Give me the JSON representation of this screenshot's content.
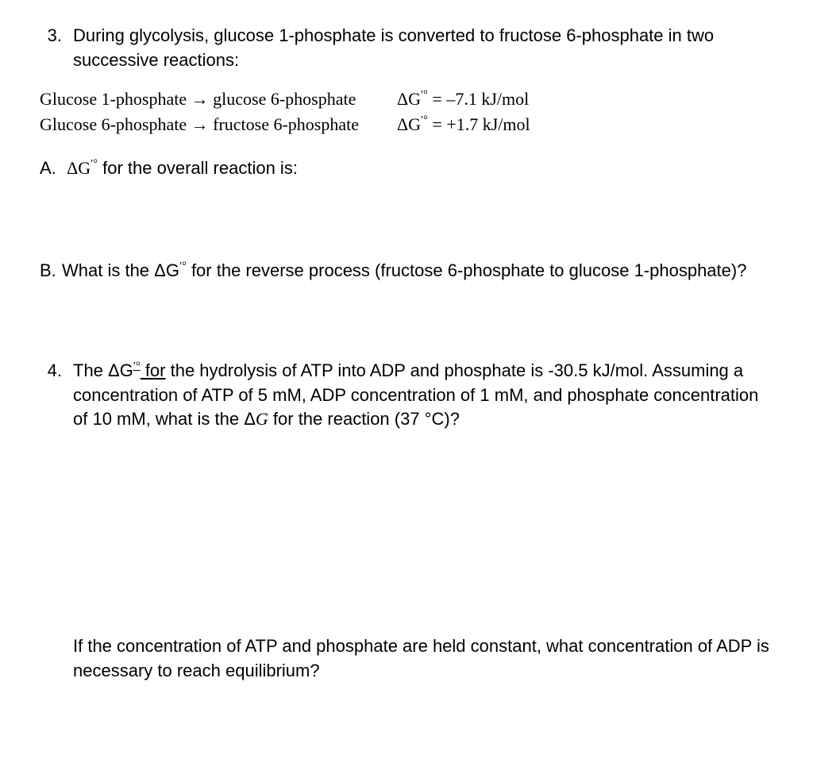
{
  "q3": {
    "number": "3.",
    "intro": "During glycolysis, glucose 1-phosphate is converted to fructose 6-phosphate in two successive reactions:",
    "reactions": [
      {
        "lhs": "Glucose 1-phosphate",
        "arrow": "→",
        "rhs": "glucose 6-phosphate",
        "dg_prefix": "ΔG",
        "dg_sup": "ʹ°",
        "dg_value": " = –7.1 kJ/mol"
      },
      {
        "lhs": "Glucose 6-phosphate",
        "arrow": "→",
        "rhs": "fructose 6-phosphate",
        "dg_prefix": "ΔG",
        "dg_sup": "ʹ°",
        "dg_value": " = +1.7 kJ/mol"
      }
    ],
    "partA": {
      "label": "A.",
      "text_pre": "ΔG",
      "text_sup": "ʹ°",
      "text_post": " for the overall reaction is:"
    },
    "partB": {
      "label": "B.",
      "text_pre": "What is the ΔG",
      "text_sup": "ʹ°",
      "text_post": " for the reverse process (fructose 6-phosphate to glucose 1-phosphate)?"
    }
  },
  "q4": {
    "number": "4.",
    "line1_pre": "The  ΔG",
    "line1_sup": "ʹ°",
    "line1_uline": " for",
    "line1_post": " the hydrolysis of ATP into ADP and phosphate is -30.5 kJ/mol.",
    "line2": "Assuming a concentration of ATP of 5 mM, ADP concentration of 1 mM, and phosphate concentration of 10 mM, what is the  Δ",
    "line2_G": "G",
    "line2_post": " for the reaction (37 °C)?",
    "followup": "If the concentration of ATP and phosphate are held constant, what concentration of ADP is necessary to reach equilibrium?"
  }
}
